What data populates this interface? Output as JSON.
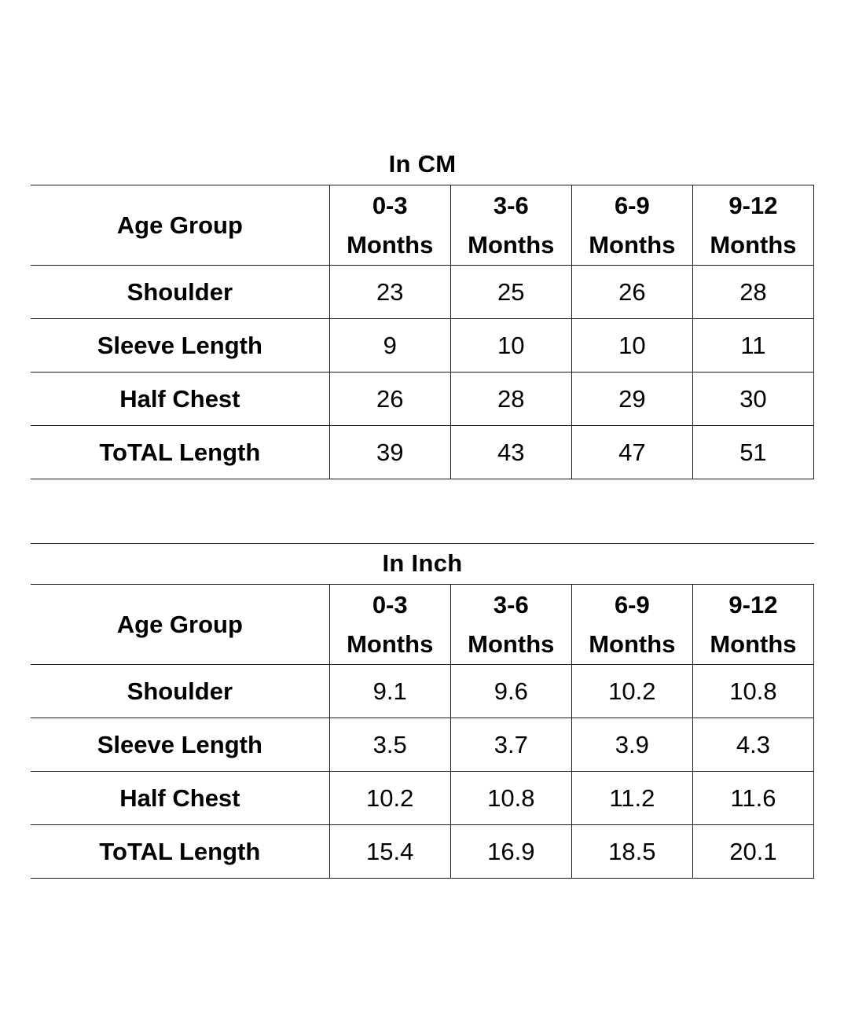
{
  "tables": [
    {
      "title": "In CM",
      "label_header": "Age Group",
      "columns": [
        {
          "line1": "0-3",
          "line2": "Months"
        },
        {
          "line1": "3-6",
          "line2": "Months"
        },
        {
          "line1": "6-9",
          "line2": "Months"
        },
        {
          "line1": "9-12",
          "line2": "Months"
        }
      ],
      "rows": [
        {
          "label": "Shoulder",
          "values": [
            "23",
            "25",
            "26",
            "28"
          ]
        },
        {
          "label": "Sleeve Length",
          "values": [
            "9",
            "10",
            "10",
            "11"
          ]
        },
        {
          "label": "Half Chest",
          "values": [
            "26",
            "28",
            "29",
            "30"
          ]
        },
        {
          "label": "ToTAL Length",
          "values": [
            "39",
            "43",
            "47",
            "51"
          ]
        }
      ]
    },
    {
      "title": "In Inch",
      "label_header": "Age Group",
      "columns": [
        {
          "line1": "0-3",
          "line2": "Months"
        },
        {
          "line1": "3-6",
          "line2": "Months"
        },
        {
          "line1": "6-9",
          "line2": "Months"
        },
        {
          "line1": "9-12",
          "line2": "Months"
        }
      ],
      "rows": [
        {
          "label": "Shoulder",
          "values": [
            "9.1",
            "9.6",
            "10.2",
            "10.8"
          ]
        },
        {
          "label": "Sleeve Length",
          "values": [
            "3.5",
            "3.7",
            "3.9",
            "4.3"
          ]
        },
        {
          "label": "Half Chest",
          "values": [
            "10.2",
            "10.8",
            "11.2",
            "11.6"
          ]
        },
        {
          "label": "ToTAL Length",
          "values": [
            "15.4",
            "16.9",
            "18.5",
            "20.1"
          ]
        }
      ]
    }
  ]
}
